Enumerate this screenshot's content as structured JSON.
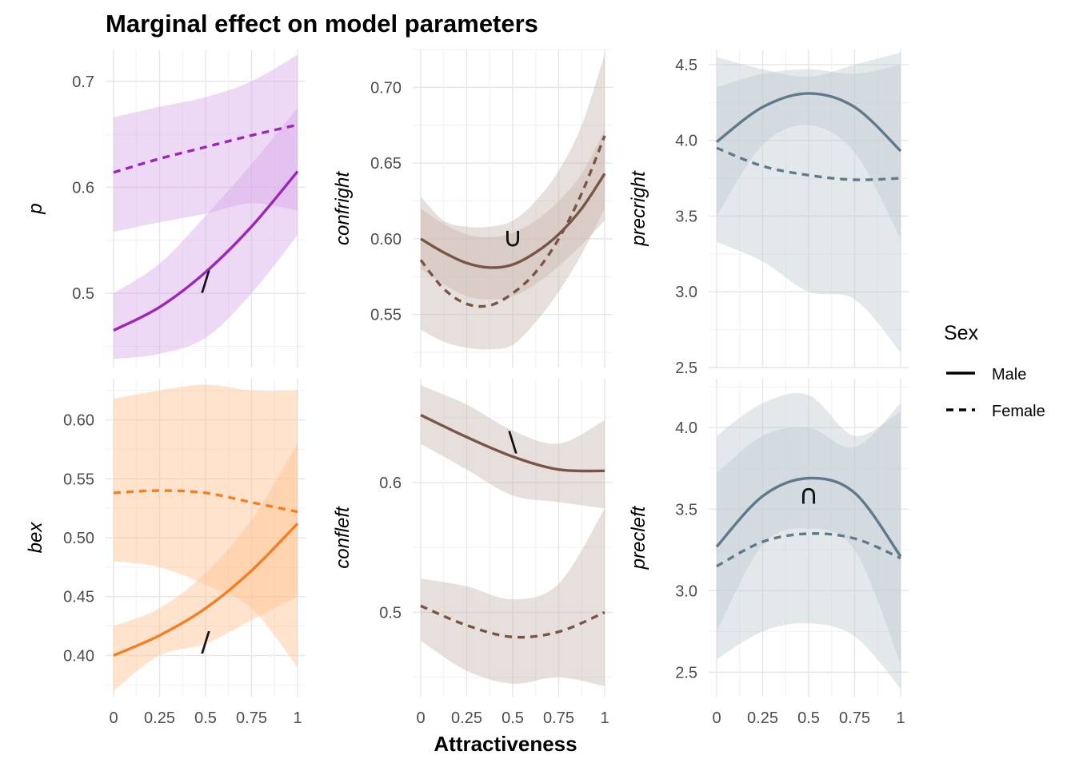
{
  "title": "Marginal effect on model parameters",
  "xlabel": "Attractiveness",
  "legend": {
    "title": "Sex",
    "entries": [
      {
        "label": "Male",
        "linetype": "solid"
      },
      {
        "label": "Female",
        "linetype": "dashed"
      }
    ],
    "position": "right"
  },
  "chart_data": [
    {
      "type": "line",
      "ylabel": "p",
      "color": "#9b27b5",
      "fill": "#d8a8e8",
      "xlim": [
        0,
        1
      ],
      "ylim": [
        0.43,
        0.73
      ],
      "yticks": [
        0.5,
        0.6,
        0.7
      ],
      "ytick_labels": [
        "0.5",
        "0.6",
        "0.7"
      ],
      "xticks": [
        0,
        0.25,
        0.5,
        0.75,
        1
      ],
      "xtick_labels": [
        "0",
        "0.25",
        "0.5",
        "0.75",
        "1"
      ],
      "annotation": {
        "text": "/",
        "x": 0.5,
        "y": 0.51
      },
      "x": [
        0,
        0.25,
        0.5,
        0.75,
        1
      ],
      "series": [
        {
          "name": "Male",
          "values": [
            0.465,
            0.487,
            0.52,
            0.563,
            0.615
          ],
          "lower": [
            0.438,
            0.443,
            0.458,
            0.5,
            0.555
          ],
          "upper": [
            0.5,
            0.528,
            0.573,
            0.622,
            0.675
          ]
        },
        {
          "name": "Female",
          "values": [
            0.614,
            0.627,
            0.638,
            0.649,
            0.659
          ],
          "lower": [
            0.558,
            0.567,
            0.575,
            0.585,
            0.578
          ],
          "upper": [
            0.666,
            0.676,
            0.685,
            0.7,
            0.725
          ]
        }
      ]
    },
    {
      "type": "line",
      "ylabel": "confright",
      "color": "#795548",
      "fill": "#c9b8b0",
      "xlim": [
        0,
        1
      ],
      "ylim": [
        0.515,
        0.725
      ],
      "yticks": [
        0.55,
        0.6,
        0.65,
        0.7
      ],
      "ytick_labels": [
        "0.55",
        "0.60",
        "0.65",
        "0.70"
      ],
      "xticks": [
        0,
        0.25,
        0.5,
        0.75,
        1
      ],
      "xtick_labels": [
        "0",
        "0.25",
        "0.5",
        "0.75",
        "1"
      ],
      "annotation": {
        "text": "∪",
        "x": 0.5,
        "y": 0.6
      },
      "x": [
        0,
        0.125,
        0.25,
        0.375,
        0.5,
        0.625,
        0.75,
        0.875,
        1
      ],
      "series": [
        {
          "name": "Male",
          "values": [
            0.6,
            0.591,
            0.584,
            0.581,
            0.583,
            0.591,
            0.603,
            0.62,
            0.643
          ],
          "lower": [
            0.58,
            0.57,
            0.562,
            0.56,
            0.562,
            0.57,
            0.582,
            0.596,
            0.612
          ],
          "upper": [
            0.62,
            0.61,
            0.603,
            0.601,
            0.604,
            0.612,
            0.625,
            0.643,
            0.672
          ]
        },
        {
          "name": "Female",
          "values": [
            0.586,
            0.567,
            0.557,
            0.556,
            0.564,
            0.578,
            0.6,
            0.63,
            0.668
          ],
          "lower": [
            0.54,
            0.532,
            0.528,
            0.527,
            0.53,
            0.545,
            0.565,
            0.59,
            0.62
          ],
          "upper": [
            0.628,
            0.612,
            0.608,
            0.608,
            0.612,
            0.625,
            0.645,
            0.675,
            0.722
          ]
        }
      ]
    },
    {
      "type": "line",
      "ylabel": "precright",
      "color": "#5f7a88",
      "fill": "#c0ccd3",
      "xlim": [
        0,
        1
      ],
      "ylim": [
        2.5,
        4.6
      ],
      "yticks": [
        2.5,
        3.0,
        3.5,
        4.0,
        4.5
      ],
      "ytick_labels": [
        "2.5",
        "3.0",
        "3.5",
        "4.0",
        "4.5"
      ],
      "xticks": [
        0,
        0.25,
        0.5,
        0.75,
        1
      ],
      "xtick_labels": [
        "0",
        "0.25",
        "0.5",
        "0.75",
        "1"
      ],
      "annotation": null,
      "x": [
        0,
        0.25,
        0.5,
        0.75,
        1
      ],
      "series": [
        {
          "name": "Male",
          "values": [
            3.99,
            4.22,
            4.31,
            4.22,
            3.93
          ],
          "lower": [
            3.5,
            3.97,
            4.1,
            3.92,
            3.35
          ],
          "upper": [
            4.35,
            4.44,
            4.47,
            4.44,
            4.5
          ]
        },
        {
          "name": "Female",
          "values": [
            3.95,
            3.83,
            3.77,
            3.74,
            3.75
          ],
          "lower": [
            3.33,
            3.2,
            3.0,
            2.95,
            2.6
          ],
          "upper": [
            4.55,
            4.47,
            4.42,
            4.5,
            4.58
          ]
        }
      ]
    },
    {
      "type": "line",
      "ylabel": "bex",
      "color": "#f57e22",
      "fill": "#ffc08f",
      "xlim": [
        0,
        1
      ],
      "ylim": [
        0.365,
        0.635
      ],
      "yticks": [
        0.4,
        0.45,
        0.5,
        0.55,
        0.6
      ],
      "ytick_labels": [
        "0.40",
        "0.45",
        "0.50",
        "0.55",
        "0.60"
      ],
      "xticks": [
        0,
        0.25,
        0.5,
        0.75,
        1
      ],
      "xtick_labels": [
        "0",
        "0.25",
        "0.5",
        "0.75",
        "1"
      ],
      "annotation": {
        "text": "/",
        "x": 0.5,
        "y": 0.41
      },
      "x": [
        0,
        0.25,
        0.5,
        0.75,
        1
      ],
      "series": [
        {
          "name": "Male",
          "values": [
            0.4,
            0.417,
            0.44,
            0.472,
            0.512
          ],
          "lower": [
            0.37,
            0.4,
            0.41,
            0.43,
            0.45
          ],
          "upper": [
            0.425,
            0.44,
            0.47,
            0.515,
            0.58
          ]
        },
        {
          "name": "Female",
          "values": [
            0.538,
            0.54,
            0.538,
            0.53,
            0.522
          ],
          "lower": [
            0.48,
            0.475,
            0.46,
            0.44,
            0.39
          ],
          "upper": [
            0.618,
            0.625,
            0.63,
            0.625,
            0.625
          ]
        }
      ]
    },
    {
      "type": "line",
      "ylabel": "confleft",
      "color": "#795548",
      "fill": "#c9b8b0",
      "xlim": [
        0,
        1
      ],
      "ylim": [
        0.435,
        0.68
      ],
      "yticks": [
        0.5,
        0.6
      ],
      "ytick_labels": [
        "0.5",
        "0.6"
      ],
      "xticks": [
        0,
        0.25,
        0.5,
        0.75,
        1
      ],
      "xtick_labels": [
        "0",
        "0.25",
        "0.5",
        "0.75",
        "1"
      ],
      "annotation": {
        "text": "\\",
        "x": 0.5,
        "y": 0.63
      },
      "x": [
        0,
        0.25,
        0.5,
        0.75,
        1
      ],
      "series": [
        {
          "name": "Male",
          "values": [
            0.652,
            0.635,
            0.62,
            0.61,
            0.609
          ],
          "lower": [
            0.63,
            0.61,
            0.59,
            0.585,
            0.58
          ],
          "upper": [
            0.675,
            0.66,
            0.64,
            0.63,
            0.648
          ]
        },
        {
          "name": "Female",
          "values": [
            0.505,
            0.49,
            0.481,
            0.485,
            0.5
          ],
          "lower": [
            0.478,
            0.455,
            0.445,
            0.45,
            0.443
          ],
          "upper": [
            0.526,
            0.52,
            0.51,
            0.522,
            0.58
          ]
        }
      ]
    },
    {
      "type": "line",
      "ylabel": "precleft",
      "color": "#5f7a88",
      "fill": "#c0ccd3",
      "xlim": [
        0,
        1
      ],
      "ylim": [
        2.35,
        4.3
      ],
      "yticks": [
        2.5,
        3.0,
        3.5,
        4.0
      ],
      "ytick_labels": [
        "2.5",
        "3.0",
        "3.5",
        "4.0"
      ],
      "xticks": [
        0,
        0.25,
        0.5,
        0.75,
        1
      ],
      "xtick_labels": [
        "0",
        "0.25",
        "0.5",
        "0.75",
        "1"
      ],
      "annotation": {
        "text": "∩",
        "x": 0.5,
        "y": 3.58
      },
      "x": [
        0,
        0.25,
        0.5,
        0.75,
        1
      ],
      "series": [
        {
          "name": "Male",
          "values": [
            3.27,
            3.58,
            3.69,
            3.6,
            3.21
          ],
          "lower": [
            2.75,
            3.28,
            3.38,
            3.25,
            2.55
          ],
          "upper": [
            3.72,
            3.95,
            4.0,
            3.88,
            4.15
          ]
        },
        {
          "name": "Female",
          "values": [
            3.15,
            3.3,
            3.35,
            3.32,
            3.2
          ],
          "lower": [
            2.58,
            2.75,
            2.8,
            2.72,
            2.4
          ],
          "upper": [
            3.95,
            4.15,
            4.2,
            3.95,
            4.1
          ]
        }
      ]
    }
  ]
}
